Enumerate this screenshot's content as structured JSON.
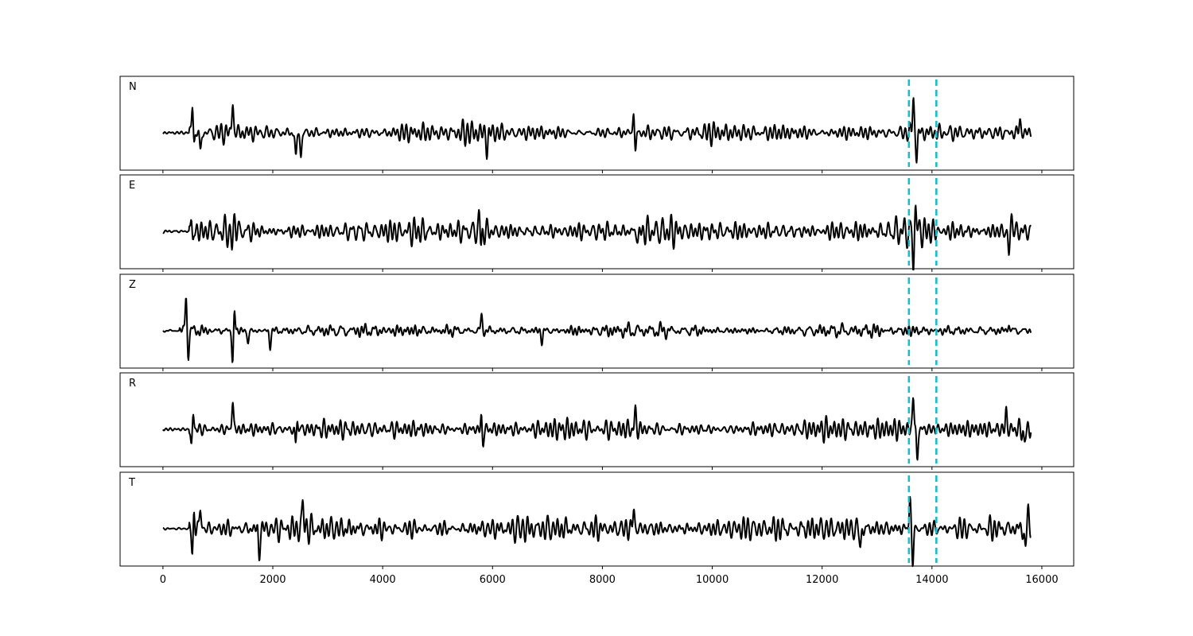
{
  "figure": {
    "background": "#ffffff"
  },
  "chart_data": {
    "type": "line",
    "subtype": "multi-channel seismogram (stacked subplots, shared x axis)",
    "title": "",
    "xlabel": "",
    "ylabel": "",
    "xlim": [
      -780,
      16580
    ],
    "x_ticks": [
      0,
      2000,
      4000,
      6000,
      8000,
      10000,
      12000,
      14000,
      16000
    ],
    "y_ticks_visible": false,
    "grid": false,
    "line_color": "#000000",
    "pick_color": "#17becf",
    "pick_lines": [
      13580,
      14080
    ],
    "sample_range": [
      0,
      15800
    ],
    "panels": [
      {
        "channel": "N",
        "noise_amplitude": 0.15,
        "noise_frequency": 2.2,
        "noise_start": 480,
        "onset_sample": 0,
        "events": [
          {
            "x": 540,
            "y": 0.95
          },
          {
            "x": 560,
            "y": -0.45
          },
          {
            "x": 680,
            "y": -0.55
          },
          {
            "x": 1270,
            "y": 0.88
          },
          {
            "x": 2420,
            "y": -0.72
          },
          {
            "x": 2510,
            "y": -0.68
          },
          {
            "x": 5900,
            "y": -0.48
          },
          {
            "x": 8570,
            "y": 0.65
          },
          {
            "x": 8600,
            "y": -0.6
          },
          {
            "x": 13660,
            "y": 1.0
          },
          {
            "x": 13720,
            "y": -0.7
          },
          {
            "x": 15600,
            "y": 0.35
          }
        ]
      },
      {
        "channel": "E",
        "noise_amplitude": 0.2,
        "noise_frequency": 2.0,
        "noise_start": 480,
        "onset_sample": 0,
        "events": [
          {
            "x": 520,
            "y": 0.5
          },
          {
            "x": 540,
            "y": -0.4
          },
          {
            "x": 1260,
            "y": -0.5
          },
          {
            "x": 1310,
            "y": 0.5
          },
          {
            "x": 5760,
            "y": 0.5
          },
          {
            "x": 5790,
            "y": -0.45
          },
          {
            "x": 8650,
            "y": -0.3
          },
          {
            "x": 13660,
            "y": -1.0
          },
          {
            "x": 13700,
            "y": 0.82
          },
          {
            "x": 15400,
            "y": -0.7
          },
          {
            "x": 15450,
            "y": 0.48
          }
        ]
      },
      {
        "channel": "Z",
        "noise_amplitude": 0.1,
        "noise_frequency": 2.0,
        "noise_start": 300,
        "onset_sample": 0,
        "events": [
          {
            "x": 420,
            "y": 1.0
          },
          {
            "x": 460,
            "y": -0.72
          },
          {
            "x": 1270,
            "y": -0.95
          },
          {
            "x": 1300,
            "y": 0.62
          },
          {
            "x": 1550,
            "y": -0.35
          },
          {
            "x": 1950,
            "y": -0.45
          },
          {
            "x": 5800,
            "y": 0.4
          },
          {
            "x": 6900,
            "y": -0.3
          },
          {
            "x": 15400,
            "y": 0.2
          }
        ]
      },
      {
        "channel": "R",
        "noise_amplitude": 0.17,
        "noise_frequency": 2.0,
        "noise_start": 480,
        "onset_sample": 0,
        "events": [
          {
            "x": 520,
            "y": -0.55
          },
          {
            "x": 550,
            "y": 0.5
          },
          {
            "x": 1270,
            "y": 0.8
          },
          {
            "x": 2420,
            "y": -0.62
          },
          {
            "x": 2440,
            "y": 0.48
          },
          {
            "x": 5800,
            "y": 0.45
          },
          {
            "x": 5820,
            "y": -0.55
          },
          {
            "x": 8600,
            "y": 0.48
          },
          {
            "x": 13660,
            "y": 1.0
          },
          {
            "x": 13730,
            "y": -0.88
          },
          {
            "x": 15350,
            "y": 0.48
          },
          {
            "x": 15680,
            "y": -0.45
          }
        ]
      },
      {
        "channel": "T",
        "noise_amplitude": 0.2,
        "noise_frequency": 2.2,
        "noise_start": 480,
        "onset_sample": 0,
        "events": [
          {
            "x": 540,
            "y": -0.88
          },
          {
            "x": 560,
            "y": 0.62
          },
          {
            "x": 680,
            "y": 0.6
          },
          {
            "x": 1750,
            "y": -0.75
          },
          {
            "x": 2550,
            "y": 0.8
          },
          {
            "x": 8570,
            "y": 0.55
          },
          {
            "x": 13650,
            "y": -1.0
          },
          {
            "x": 13600,
            "y": 0.9
          },
          {
            "x": 12700,
            "y": -0.55
          },
          {
            "x": 15700,
            "y": -0.58
          },
          {
            "x": 15750,
            "y": 0.48
          }
        ]
      }
    ]
  }
}
